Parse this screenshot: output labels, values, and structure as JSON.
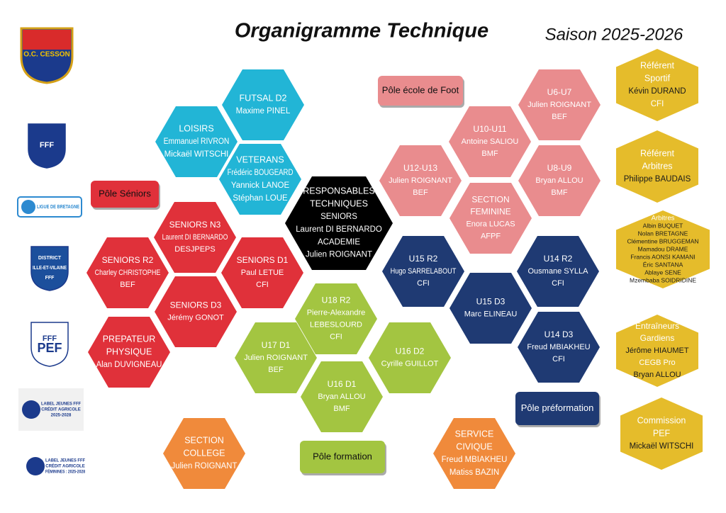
{
  "header": {
    "title": "Organigramme Technique",
    "season": "Saison 2025-2026"
  },
  "logos": [
    {
      "lines": [
        "O.C. CESSON"
      ]
    },
    {
      "lines": [
        "FFF"
      ]
    },
    {
      "lines": [
        "LIGUE DE BRETAGNE"
      ]
    },
    {
      "lines": [
        "DISTRICT",
        "ILLE-ET-VILAINE",
        "FFF"
      ]
    },
    {
      "lines": [
        "FFF",
        "PEF"
      ]
    },
    {
      "lines": [
        "LABEL JEUNES FFF",
        "CRÉDIT AGRICOLE",
        "2025-2028"
      ]
    },
    {
      "lines": [
        "LABEL JEUNES FFF",
        "CRÉDIT AGRICOLE",
        "FÉMININES : 2025-2028"
      ]
    }
  ],
  "poles": [
    "Pôle Séniors",
    "Pôle école de Foot",
    "Pôle formation",
    "Pôle préformation"
  ],
  "hexagons": [
    {
      "lines": [
        "FUTSAL  D2",
        "Maxime PINEL"
      ]
    },
    {
      "lines": [
        "LOISIRS",
        "Emmanuel RIVRON",
        "Mickaël WITSCHI"
      ]
    },
    {
      "lines": [
        "VETERANS",
        "Frédéric BOUGEARD",
        "Yannick LANOE",
        "Stéphan LOUE"
      ]
    },
    {
      "lines": [
        "RESPONSABLES",
        "TECHNIQUES",
        "SENIORS",
        "Laurent DI BERNARDO",
        "ACADEMIE",
        "Julien ROIGNANT"
      ]
    },
    {
      "lines": [
        "SENIORS N3",
        "Laurent DI BERNARDO",
        "DESJPEPS"
      ]
    },
    {
      "lines": [
        "SENIORS R2",
        "Charley CHRISTOPHE",
        "BEF"
      ]
    },
    {
      "lines": [
        "SENIORS D1",
        "Paul LETUE",
        "CFI"
      ]
    },
    {
      "lines": [
        "SENIORS D3",
        "Jérémy GONOT"
      ]
    },
    {
      "lines": [
        "PREPATEUR",
        "PHYSIQUE",
        "Alan DUVIGNEAU"
      ]
    },
    {
      "lines": [
        "U18 R2",
        "Pierre-Alexandre",
        "LEBESLOURD",
        "CFI"
      ]
    },
    {
      "lines": [
        "U17 D1",
        "Julien ROIGNANT",
        "BEF"
      ]
    },
    {
      "lines": [
        "U16 D2",
        "Cyrille GUILLOT"
      ]
    },
    {
      "lines": [
        "U16 D1",
        "Bryan ALLOU",
        "BMF"
      ]
    },
    {
      "lines": [
        "U12-U13",
        "Julien ROIGNANT",
        "BEF"
      ]
    },
    {
      "lines": [
        "U10-U11",
        "Antoine SALIOU",
        "BMF"
      ]
    },
    {
      "lines": [
        "U6-U7",
        "Julien ROIGNANT",
        "BEF"
      ]
    },
    {
      "lines": [
        "U8-U9",
        "Bryan ALLOU",
        "BMF"
      ]
    },
    {
      "lines": [
        "SECTION",
        "FEMININE",
        "Enora LUCAS",
        "AFPF"
      ]
    },
    {
      "lines": [
        "U15 R2",
        "Hugo SARRELABOUT",
        "CFI"
      ]
    },
    {
      "lines": [
        "U14 R2",
        "Ousmane SYLLA",
        "CFI"
      ]
    },
    {
      "lines": [
        "U15 D3",
        "Marc ELINEAU"
      ]
    },
    {
      "lines": [
        "U14 D3",
        "Freud MBIAKHEU",
        "CFI"
      ]
    },
    {
      "lines": [
        "SECTION",
        "COLLEGE",
        "Julien ROIGNANT"
      ]
    },
    {
      "lines": [
        "SERVICE",
        "CIVIQUE",
        "Freud MBIAKHEU",
        "Matiss BAZIN"
      ]
    },
    {
      "lines": [
        "Référent",
        "Sportif",
        "Kévin DURAND",
        "CFI"
      ]
    },
    {
      "lines": [
        "Référent",
        "Arbitres",
        "Philippe BAUDAIS"
      ]
    },
    {
      "lines": [
        "Arbitres",
        "Albin BUQUET",
        "Nolan BRETAGNE",
        "Clémentine BRUGGEMAN",
        "Mamadou DRAME",
        "Francis AONSI KAMANI",
        "Éric SANTANA",
        "Ablaye SENE",
        "Mzembaba SOIDRIDINE"
      ]
    },
    {
      "lines": [
        "Entraîneurs",
        "Gardiens",
        "Jérôme HIAUMET",
        "CEGB Pro",
        "Bryan ALLOU"
      ]
    },
    {
      "lines": [
        "Commission",
        "PEF",
        "Mickaël WITSCHI"
      ]
    }
  ]
}
